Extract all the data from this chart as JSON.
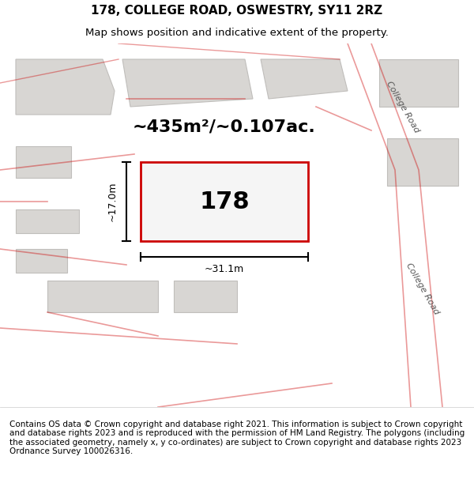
{
  "title": "178, COLLEGE ROAD, OSWESTRY, SY11 2RZ",
  "subtitle": "Map shows position and indicative extent of the property.",
  "footer": "Contains OS data © Crown copyright and database right 2021. This information is subject to Crown copyright and database rights 2023 and is reproduced with the permission of HM Land Registry. The polygons (including the associated geometry, namely x, y co-ordinates) are subject to Crown copyright and database rights 2023 Ordnance Survey 100026316.",
  "area_text": "~435m²/~0.107ac.",
  "property_label": "178",
  "dim1_label": "~17.0m",
  "dim2_label": "~31.1m",
  "bg_color": "#f0eeeb",
  "map_bg": "#e8e6e3",
  "road_color": "#f5f5f5",
  "building_fill": "#d8d6d3",
  "building_edge": "#c0bebb",
  "highlight_fill": "#f5f5f5",
  "highlight_edge": "#cc0000",
  "road_line_color": "#cc0000",
  "road_line_alpha": 0.4,
  "street_label": "College Road",
  "title_fontsize": 11,
  "subtitle_fontsize": 9.5,
  "footer_fontsize": 7.5
}
